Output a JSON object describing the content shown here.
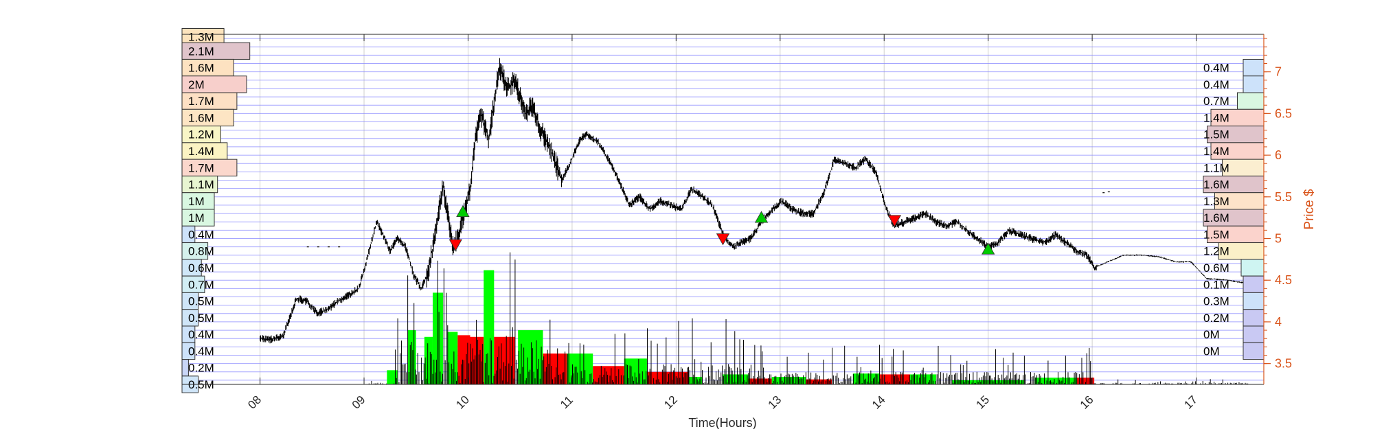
{
  "chart_data": {
    "type": "candlestick-volume-profile",
    "title": "",
    "xlabel": "Time(Hours)",
    "ylabel": "Price $",
    "xlim": [
      7.25,
      17.65
    ],
    "ylim": [
      3.25,
      7.45
    ],
    "grid": true,
    "x_ticks": [
      8,
      9,
      10,
      11,
      12,
      13,
      14,
      15,
      16,
      17
    ],
    "x_tick_labels": [
      "08",
      "09",
      "10",
      "11",
      "12",
      "13",
      "14",
      "15",
      "16",
      "17"
    ],
    "y_ticks": [
      3.5,
      4,
      4.5,
      5,
      5.5,
      6,
      6.5,
      7
    ],
    "y_tick_labels": [
      "3.5",
      "4",
      "4.5",
      "5",
      "5.5",
      "6",
      "6.5",
      "7"
    ],
    "price_path": [
      [
        8.0,
        3.8
      ],
      [
        8.1,
        3.79
      ],
      [
        8.22,
        3.82
      ],
      [
        8.3,
        4.1
      ],
      [
        8.35,
        4.28
      ],
      [
        8.45,
        4.25
      ],
      [
        8.55,
        4.1
      ],
      [
        8.65,
        4.15
      ],
      [
        8.75,
        4.25
      ],
      [
        8.85,
        4.32
      ],
      [
        8.95,
        4.4
      ],
      [
        9.05,
        4.85
      ],
      [
        9.12,
        5.2
      ],
      [
        9.18,
        5.05
      ],
      [
        9.25,
        4.85
      ],
      [
        9.32,
        5.0
      ],
      [
        9.4,
        4.9
      ],
      [
        9.48,
        4.55
      ],
      [
        9.55,
        4.4
      ],
      [
        9.62,
        4.6
      ],
      [
        9.7,
        5.2
      ],
      [
        9.76,
        5.65
      ],
      [
        9.8,
        5.3
      ],
      [
        9.86,
        4.9
      ],
      [
        9.9,
        5.0
      ],
      [
        9.96,
        5.3
      ],
      [
        10.02,
        5.6
      ],
      [
        10.06,
        6.1
      ],
      [
        10.12,
        6.5
      ],
      [
        10.2,
        6.2
      ],
      [
        10.3,
        7.05
      ],
      [
        10.38,
        6.8
      ],
      [
        10.45,
        6.9
      ],
      [
        10.55,
        6.5
      ],
      [
        10.62,
        6.6
      ],
      [
        10.7,
        6.3
      ],
      [
        10.8,
        6.05
      ],
      [
        10.9,
        5.7
      ],
      [
        10.98,
        5.9
      ],
      [
        11.08,
        6.2
      ],
      [
        11.15,
        6.25
      ],
      [
        11.25,
        6.15
      ],
      [
        11.35,
        5.95
      ],
      [
        11.45,
        5.7
      ],
      [
        11.55,
        5.4
      ],
      [
        11.65,
        5.5
      ],
      [
        11.75,
        5.35
      ],
      [
        11.85,
        5.45
      ],
      [
        11.95,
        5.4
      ],
      [
        12.05,
        5.35
      ],
      [
        12.15,
        5.6
      ],
      [
        12.25,
        5.5
      ],
      [
        12.35,
        5.4
      ],
      [
        12.45,
        5.05
      ],
      [
        12.55,
        4.9
      ],
      [
        12.62,
        4.95
      ],
      [
        12.72,
        5.0
      ],
      [
        12.82,
        5.2
      ],
      [
        12.92,
        5.35
      ],
      [
        13.02,
        5.45
      ],
      [
        13.12,
        5.35
      ],
      [
        13.22,
        5.3
      ],
      [
        13.32,
        5.3
      ],
      [
        13.42,
        5.55
      ],
      [
        13.52,
        5.95
      ],
      [
        13.62,
        5.9
      ],
      [
        13.72,
        5.85
      ],
      [
        13.82,
        5.95
      ],
      [
        13.92,
        5.8
      ],
      [
        14.02,
        5.35
      ],
      [
        14.1,
        5.15
      ],
      [
        14.2,
        5.2
      ],
      [
        14.3,
        5.25
      ],
      [
        14.4,
        5.3
      ],
      [
        14.5,
        5.2
      ],
      [
        14.6,
        5.15
      ],
      [
        14.7,
        5.2
      ],
      [
        14.8,
        5.1
      ],
      [
        14.9,
        5.0
      ],
      [
        15.0,
        4.9
      ],
      [
        15.1,
        4.95
      ],
      [
        15.2,
        5.1
      ],
      [
        15.3,
        5.05
      ],
      [
        15.42,
        5.0
      ],
      [
        15.55,
        4.95
      ],
      [
        15.65,
        5.05
      ],
      [
        15.75,
        4.95
      ],
      [
        15.85,
        4.85
      ],
      [
        15.95,
        4.8
      ],
      [
        16.02,
        4.65
      ],
      [
        16.15,
        4.72
      ],
      [
        16.3,
        4.8
      ],
      [
        16.5,
        4.8
      ],
      [
        16.65,
        4.78
      ],
      [
        16.8,
        4.72
      ],
      [
        16.95,
        4.72
      ],
      [
        17.1,
        4.52
      ],
      [
        17.3,
        4.5
      ],
      [
        17.45,
        4.47
      ],
      [
        17.5,
        4.45
      ]
    ],
    "sparse_points": [
      [
        8.45,
        4.9
      ],
      [
        8.55,
        4.9
      ],
      [
        8.65,
        4.9
      ],
      [
        8.75,
        4.9
      ],
      [
        16.1,
        5.55
      ],
      [
        16.15,
        5.56
      ]
    ],
    "signals": [
      {
        "x": 9.88,
        "y": 4.93,
        "type": "sell"
      },
      {
        "x": 9.95,
        "y": 5.32,
        "type": "buy"
      },
      {
        "x": 12.45,
        "y": 5.0,
        "type": "sell"
      },
      {
        "x": 12.82,
        "y": 5.25,
        "type": "buy"
      },
      {
        "x": 14.1,
        "y": 5.22,
        "type": "sell"
      },
      {
        "x": 15.0,
        "y": 4.87,
        "type": "buy"
      }
    ],
    "volume_blocks": [
      {
        "x0": 9.22,
        "x1": 9.32,
        "top": 3.42,
        "color": "#00ff00"
      },
      {
        "x0": 9.42,
        "x1": 9.5,
        "top": 3.9,
        "color": "#00ff00"
      },
      {
        "x0": 9.58,
        "x1": 9.66,
        "top": 3.82,
        "color": "#00ff00"
      },
      {
        "x0": 9.66,
        "x1": 9.76,
        "top": 4.35,
        "color": "#00ff00"
      },
      {
        "x0": 9.8,
        "x1": 9.9,
        "top": 3.88,
        "color": "#00ff00"
      },
      {
        "x0": 9.9,
        "x1": 10.02,
        "top": 3.84,
        "color": "#ff0000"
      },
      {
        "x0": 10.02,
        "x1": 10.15,
        "top": 3.82,
        "color": "#ff0000"
      },
      {
        "x0": 10.15,
        "x1": 10.25,
        "top": 4.62,
        "color": "#00ff00"
      },
      {
        "x0": 10.25,
        "x1": 10.45,
        "top": 3.82,
        "color": "#ff0000"
      },
      {
        "x0": 10.48,
        "x1": 10.72,
        "top": 3.9,
        "color": "#00ff00"
      },
      {
        "x0": 10.72,
        "x1": 10.95,
        "top": 3.62,
        "color": "#ff0000"
      },
      {
        "x0": 10.95,
        "x1": 11.2,
        "top": 3.62,
        "color": "#00ff00"
      },
      {
        "x0": 11.2,
        "x1": 11.5,
        "top": 3.47,
        "color": "#ff0000"
      },
      {
        "x0": 11.5,
        "x1": 11.72,
        "top": 3.56,
        "color": "#00ff00"
      },
      {
        "x0": 11.72,
        "x1": 12.12,
        "top": 3.4,
        "color": "#ff0000"
      },
      {
        "x0": 12.12,
        "x1": 12.25,
        "top": 3.34,
        "color": "#00ff00"
      },
      {
        "x0": 12.45,
        "x1": 12.7,
        "top": 3.37,
        "color": "#00ff00"
      },
      {
        "x0": 12.7,
        "x1": 12.92,
        "top": 3.32,
        "color": "#ff0000"
      },
      {
        "x0": 12.92,
        "x1": 13.25,
        "top": 3.34,
        "color": "#00ff00"
      },
      {
        "x0": 13.25,
        "x1": 13.5,
        "top": 3.31,
        "color": "#ff0000"
      },
      {
        "x0": 13.7,
        "x1": 13.96,
        "top": 3.38,
        "color": "#00ff00"
      },
      {
        "x0": 13.96,
        "x1": 14.25,
        "top": 3.37,
        "color": "#ff0000"
      },
      {
        "x0": 14.25,
        "x1": 14.5,
        "top": 3.37,
        "color": "#00ff00"
      },
      {
        "x0": 14.65,
        "x1": 15.35,
        "top": 3.3,
        "color": "#00ff00"
      },
      {
        "x0": 15.45,
        "x1": 15.85,
        "top": 3.33,
        "color": "#00ff00"
      },
      {
        "x0": 15.85,
        "x1": 16.02,
        "top": 3.33,
        "color": "#ff0000"
      }
    ],
    "volume_profile_left": [
      {
        "price": 7.42,
        "label": "1.3M",
        "vol": 1.3,
        "color": "#fde3bd"
      },
      {
        "price": 7.25,
        "label": "2.1M",
        "vol": 2.1,
        "color": "#e0c4cb"
      },
      {
        "price": 7.05,
        "label": "1.6M",
        "vol": 1.6,
        "color": "#fde2c1"
      },
      {
        "price": 6.85,
        "label": "2M",
        "vol": 2.0,
        "color": "#f7cfcb"
      },
      {
        "price": 6.65,
        "label": "1.7M",
        "vol": 1.7,
        "color": "#fde0c4"
      },
      {
        "price": 6.45,
        "label": "1.6M",
        "vol": 1.6,
        "color": "#fde5c4"
      },
      {
        "price": 6.25,
        "label": "1.2M",
        "vol": 1.2,
        "color": "#f8f5c6"
      },
      {
        "price": 6.05,
        "label": "1.4M",
        "vol": 1.4,
        "color": "#fbf3c3"
      },
      {
        "price": 5.85,
        "label": "1.7M",
        "vol": 1.7,
        "color": "#fbd7cc"
      },
      {
        "price": 5.65,
        "label": "1.1M",
        "vol": 1.1,
        "color": "#e8f5d1"
      },
      {
        "price": 5.45,
        "label": "1M",
        "vol": 1.0,
        "color": "#d9f7e1"
      },
      {
        "price": 5.25,
        "label": "1M",
        "vol": 1.0,
        "color": "#d9f7e1"
      },
      {
        "price": 5.05,
        "label": "0.4M",
        "vol": 0.4,
        "color": "#cde2fa"
      },
      {
        "price": 4.85,
        "label": "0.8M",
        "vol": 0.8,
        "color": "#d5f1ec"
      },
      {
        "price": 4.65,
        "label": "0.6M",
        "vol": 0.6,
        "color": "#cfe7f8"
      },
      {
        "price": 4.45,
        "label": "0.7M",
        "vol": 0.7,
        "color": "#d2eef4"
      },
      {
        "price": 4.25,
        "label": "0.5M",
        "vol": 0.5,
        "color": "#cfe5f8"
      },
      {
        "price": 4.05,
        "label": "0.5M",
        "vol": 0.5,
        "color": "#cfe5f8"
      },
      {
        "price": 3.85,
        "label": "0.4M",
        "vol": 0.4,
        "color": "#cde2fa"
      },
      {
        "price": 3.65,
        "label": "0.4M",
        "vol": 0.4,
        "color": "#cde2fa"
      },
      {
        "price": 3.45,
        "label": "0.2M",
        "vol": 0.2,
        "color": "#c9d6f7"
      },
      {
        "price": 3.25,
        "label": "0.5M",
        "vol": 0.5,
        "color": "#cfe5f8"
      }
    ],
    "volume_profile_right": [
      {
        "price": 7.05,
        "label": "0.4M",
        "vol": 0.4,
        "color": "#cde2fa"
      },
      {
        "price": 6.85,
        "label": "0.4M",
        "vol": 0.4,
        "color": "#cde2fa"
      },
      {
        "price": 6.65,
        "label": "0.7M",
        "vol": 0.7,
        "color": "#d9f7e1"
      },
      {
        "price": 6.45,
        "label": "1.4M",
        "vol": 1.4,
        "color": "#fbd3cc"
      },
      {
        "price": 6.25,
        "label": "1.5M",
        "vol": 1.5,
        "color": "#e0c4cb"
      },
      {
        "price": 6.05,
        "label": "1.4M",
        "vol": 1.4,
        "color": "#fbd3cc"
      },
      {
        "price": 5.85,
        "label": "1.1M",
        "vol": 1.1,
        "color": "#fbeed0"
      },
      {
        "price": 5.65,
        "label": "1.6M",
        "vol": 1.6,
        "color": "#e0c4cb"
      },
      {
        "price": 5.45,
        "label": "1.3M",
        "vol": 1.3,
        "color": "#fde3c9"
      },
      {
        "price": 5.25,
        "label": "1.6M",
        "vol": 1.6,
        "color": "#e0c4cb"
      },
      {
        "price": 5.05,
        "label": "1.5M",
        "vol": 1.5,
        "color": "#fbd3cc"
      },
      {
        "price": 4.85,
        "label": "1.2M",
        "vol": 1.2,
        "color": "#fbf0c8"
      },
      {
        "price": 4.65,
        "label": "0.6M",
        "vol": 0.6,
        "color": "#cff5f2"
      },
      {
        "price": 4.45,
        "label": "0.1M",
        "vol": 0.1,
        "color": "#c9c9f3"
      },
      {
        "price": 4.25,
        "label": "0.3M",
        "vol": 0.3,
        "color": "#cde2fa"
      },
      {
        "price": 4.05,
        "label": "0.2M",
        "vol": 0.2,
        "color": "#c9c9f3"
      },
      {
        "price": 3.85,
        "label": "0M",
        "vol": 0.0,
        "color": "#c9c9f3"
      },
      {
        "price": 3.65,
        "label": "0M",
        "vol": 0.0,
        "color": "#c9c9f3"
      }
    ],
    "colors": {
      "price": "#000000",
      "axis_right": "#d95319",
      "grid": "#8080ff",
      "buy": "#00cc00",
      "sell": "#ff0000"
    }
  }
}
